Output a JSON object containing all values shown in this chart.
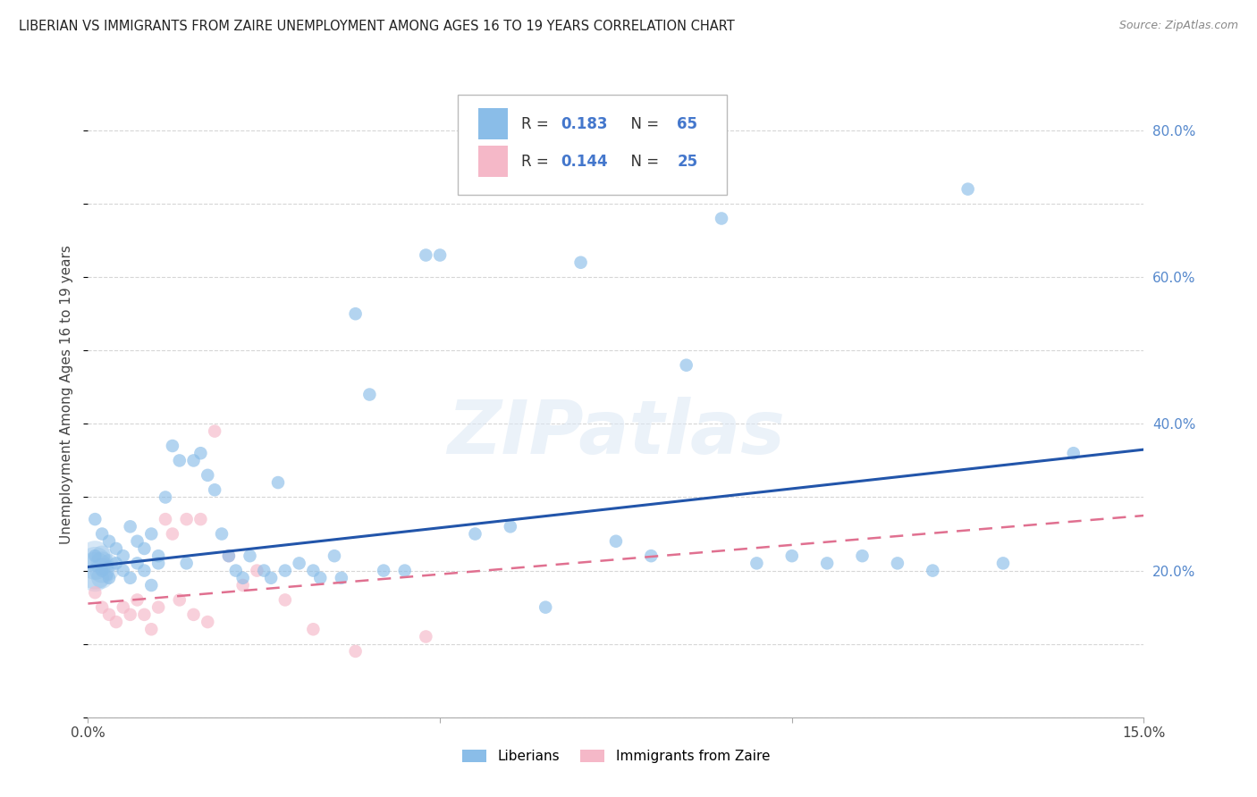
{
  "title": "LIBERIAN VS IMMIGRANTS FROM ZAIRE UNEMPLOYMENT AMONG AGES 16 TO 19 YEARS CORRELATION CHART",
  "source": "Source: ZipAtlas.com",
  "ylabel": "Unemployment Among Ages 16 to 19 years",
  "xlim": [
    0.0,
    0.15
  ],
  "ylim": [
    0.0,
    0.88
  ],
  "yticks": [
    0.0,
    0.2,
    0.4,
    0.6,
    0.8
  ],
  "ytick_labels": [
    "",
    "20.0%",
    "40.0%",
    "60.0%",
    "80.0%"
  ],
  "xticks": [
    0.0,
    0.05,
    0.1,
    0.15
  ],
  "xtick_labels": [
    "0.0%",
    "",
    "",
    "15.0%"
  ],
  "liberian_color": "#8abde8",
  "zaire_color": "#f5b8c8",
  "line_liberian_color": "#2255aa",
  "line_zaire_color": "#e07090",
  "watermark_text": "ZIPatlas",
  "liberian_scatter_x": [
    0.001,
    0.001,
    0.002,
    0.002,
    0.003,
    0.003,
    0.004,
    0.004,
    0.005,
    0.005,
    0.006,
    0.006,
    0.007,
    0.007,
    0.008,
    0.008,
    0.009,
    0.009,
    0.01,
    0.01,
    0.011,
    0.012,
    0.013,
    0.014,
    0.015,
    0.016,
    0.017,
    0.018,
    0.019,
    0.02,
    0.021,
    0.022,
    0.023,
    0.025,
    0.026,
    0.027,
    0.028,
    0.03,
    0.032,
    0.033,
    0.035,
    0.036,
    0.038,
    0.04,
    0.042,
    0.045,
    0.048,
    0.05,
    0.055,
    0.06,
    0.065,
    0.07,
    0.075,
    0.08,
    0.085,
    0.09,
    0.095,
    0.1,
    0.105,
    0.11,
    0.115,
    0.12,
    0.125,
    0.13,
    0.14
  ],
  "liberian_scatter_y": [
    0.27,
    0.22,
    0.25,
    0.2,
    0.24,
    0.19,
    0.23,
    0.21,
    0.22,
    0.2,
    0.26,
    0.19,
    0.24,
    0.21,
    0.23,
    0.2,
    0.25,
    0.18,
    0.22,
    0.21,
    0.3,
    0.37,
    0.35,
    0.21,
    0.35,
    0.36,
    0.33,
    0.31,
    0.25,
    0.22,
    0.2,
    0.19,
    0.22,
    0.2,
    0.19,
    0.32,
    0.2,
    0.21,
    0.2,
    0.19,
    0.22,
    0.19,
    0.55,
    0.44,
    0.2,
    0.2,
    0.63,
    0.63,
    0.25,
    0.26,
    0.15,
    0.62,
    0.24,
    0.22,
    0.48,
    0.68,
    0.21,
    0.22,
    0.21,
    0.22,
    0.21,
    0.2,
    0.72,
    0.21,
    0.36
  ],
  "zaire_scatter_x": [
    0.001,
    0.002,
    0.003,
    0.004,
    0.005,
    0.006,
    0.007,
    0.008,
    0.009,
    0.01,
    0.011,
    0.012,
    0.013,
    0.014,
    0.015,
    0.016,
    0.017,
    0.018,
    0.02,
    0.022,
    0.024,
    0.028,
    0.032,
    0.038,
    0.048
  ],
  "zaire_scatter_y": [
    0.17,
    0.15,
    0.14,
    0.13,
    0.15,
    0.14,
    0.16,
    0.14,
    0.12,
    0.15,
    0.27,
    0.25,
    0.16,
    0.27,
    0.14,
    0.27,
    0.13,
    0.39,
    0.22,
    0.18,
    0.2,
    0.16,
    0.12,
    0.09,
    0.11
  ],
  "liberian_line_x": [
    0.0,
    0.15
  ],
  "liberian_line_y": [
    0.205,
    0.365
  ],
  "zaire_line_x": [
    0.0,
    0.15
  ],
  "zaire_line_y": [
    0.155,
    0.275
  ],
  "marker_size": 110,
  "background_color": "#ffffff",
  "grid_color": "#cccccc",
  "cluster_x": [
    0.001,
    0.001,
    0.001,
    0.001,
    0.002,
    0.002,
    0.002,
    0.002,
    0.003,
    0.003
  ],
  "cluster_y": [
    0.2,
    0.21,
    0.22,
    0.19,
    0.2,
    0.21,
    0.19,
    0.22,
    0.2,
    0.21
  ],
  "cluster_size": [
    900,
    700,
    600,
    500,
    400,
    350,
    300,
    280,
    250,
    220
  ]
}
